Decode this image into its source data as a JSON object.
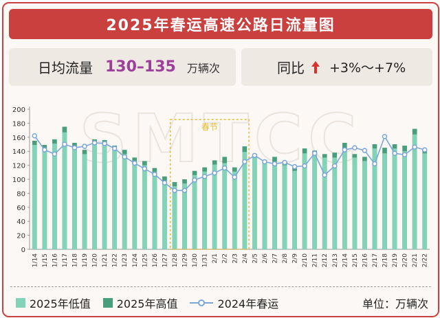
{
  "header": {
    "title": "2025年春运高速公路日流量图"
  },
  "daily_avg": {
    "label": "日均流量",
    "value": "130–135",
    "unit": "万辆次"
  },
  "yoy": {
    "label": "同比",
    "value": "+3%～+7%"
  },
  "legend": {
    "low": "2025年低值",
    "high": "2025年高值",
    "line": "2024年春运",
    "unit": "单位：万辆次"
  },
  "watermark": "SMTCC",
  "colors": {
    "low": "#82d3b8",
    "high": "#4a9e7e",
    "line": "#7aa6d8",
    "accent": "#c9403f",
    "highlight": "#e8b830"
  },
  "chart_data": {
    "type": "bar",
    "ylim": [
      0,
      200
    ],
    "yticks": [
      0,
      20,
      40,
      60,
      80,
      100,
      120,
      140,
      160,
      180,
      200
    ],
    "highlight": {
      "label": "春节",
      "start": "1/28",
      "end": "2/4"
    },
    "categories": [
      "1/14",
      "1/15",
      "1/16",
      "1/17",
      "1/18",
      "1/19",
      "1/20",
      "1/21",
      "1/22",
      "1/23",
      "1/24",
      "1/25",
      "1/26",
      "1/27",
      "1/28",
      "1/29",
      "1/30",
      "1/31",
      "2/1",
      "2/2",
      "2/3",
      "2/4",
      "2/5",
      "2/6",
      "2/7",
      "2/8",
      "2/9",
      "2/10",
      "2/11",
      "2/12",
      "2/13",
      "2/14",
      "2/15",
      "2/16",
      "2/17",
      "2/18",
      "2/19",
      "2/20",
      "2/21",
      "2/22"
    ],
    "series": [
      {
        "name": "2025年低值",
        "values": [
          149,
          143,
          151,
          167,
          146,
          136,
          151,
          150,
          142,
          136,
          125,
          120,
          110,
          98,
          90,
          94,
          106,
          111,
          121,
          123,
          111,
          139,
          131,
          123,
          125,
          120,
          112,
          137,
          136,
          131,
          131,
          144,
          131,
          126,
          144,
          137,
          144,
          140,
          164,
          137
        ]
      },
      {
        "name": "2025年高值",
        "values": [
          155,
          149,
          157,
          175,
          152,
          142,
          157,
          156,
          148,
          142,
          131,
          126,
          116,
          104,
          96,
          100,
          112,
          117,
          127,
          132,
          117,
          147,
          135,
          127,
          132,
          126,
          118,
          144,
          141,
          136,
          138,
          152,
          136,
          132,
          150,
          145,
          150,
          148,
          172,
          143
        ]
      },
      {
        "name": "2024年春运",
        "values": [
          162,
          142,
          136,
          150,
          145,
          147,
          152,
          151,
          144,
          132,
          123,
          115,
          107,
          95,
          84,
          84,
          99,
          104,
          109,
          116,
          103,
          125,
          134,
          125,
          122,
          124,
          118,
          119,
          137,
          106,
          119,
          142,
          145,
          141,
          122,
          161,
          137,
          135,
          146,
          142
        ]
      }
    ]
  }
}
